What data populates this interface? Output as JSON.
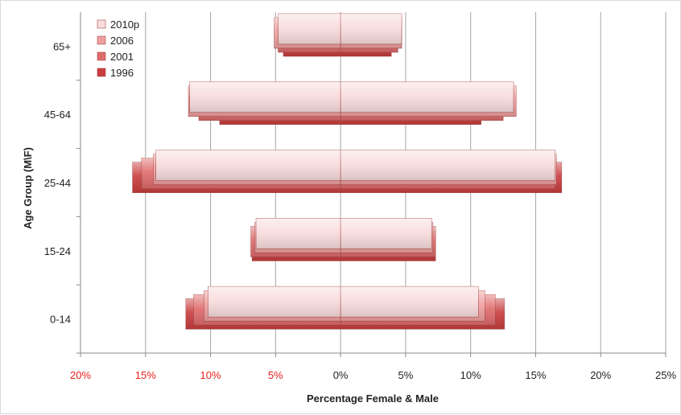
{
  "chart_data": {
    "type": "bar",
    "orientation": "horizontal",
    "layout": "population-pyramid",
    "ylabel": "Age Group (M\\F)",
    "xlabel": "Percentage Female & Male",
    "categories": [
      "0-14",
      "15-24",
      "25-44",
      "45-64",
      "65+"
    ],
    "x_ticks": [
      "20%",
      "15%",
      "10%",
      "5%",
      "0%",
      "5%",
      "10%",
      "15%",
      "20%",
      "25%"
    ],
    "xlim": [
      -20,
      25
    ],
    "negative_tick_color": "#e8201c",
    "grid": "vertical",
    "legend_position": "top-left",
    "series": [
      {
        "name": "2010p",
        "color": "#f9dcdc",
        "female": [
          10.2,
          6.5,
          14.2,
          11.6,
          4.8
        ],
        "male": [
          10.6,
          7.0,
          16.5,
          13.3,
          4.7
        ]
      },
      {
        "name": "2006",
        "color": "#ef9f9f",
        "female": [
          10.5,
          6.6,
          14.4,
          11.7,
          5.1
        ],
        "male": [
          11.1,
          7.1,
          16.6,
          13.5,
          4.7
        ]
      },
      {
        "name": "2001",
        "color": "#df6b6b",
        "female": [
          11.3,
          6.9,
          15.3,
          10.9,
          4.8
        ],
        "male": [
          11.9,
          7.3,
          16.5,
          12.5,
          4.4
        ]
      },
      {
        "name": "1996",
        "color": "#c93d3d",
        "female": [
          11.9,
          6.8,
          16.0,
          9.3,
          4.4
        ],
        "male": [
          12.6,
          7.3,
          17.0,
          10.8,
          3.9
        ]
      }
    ]
  }
}
